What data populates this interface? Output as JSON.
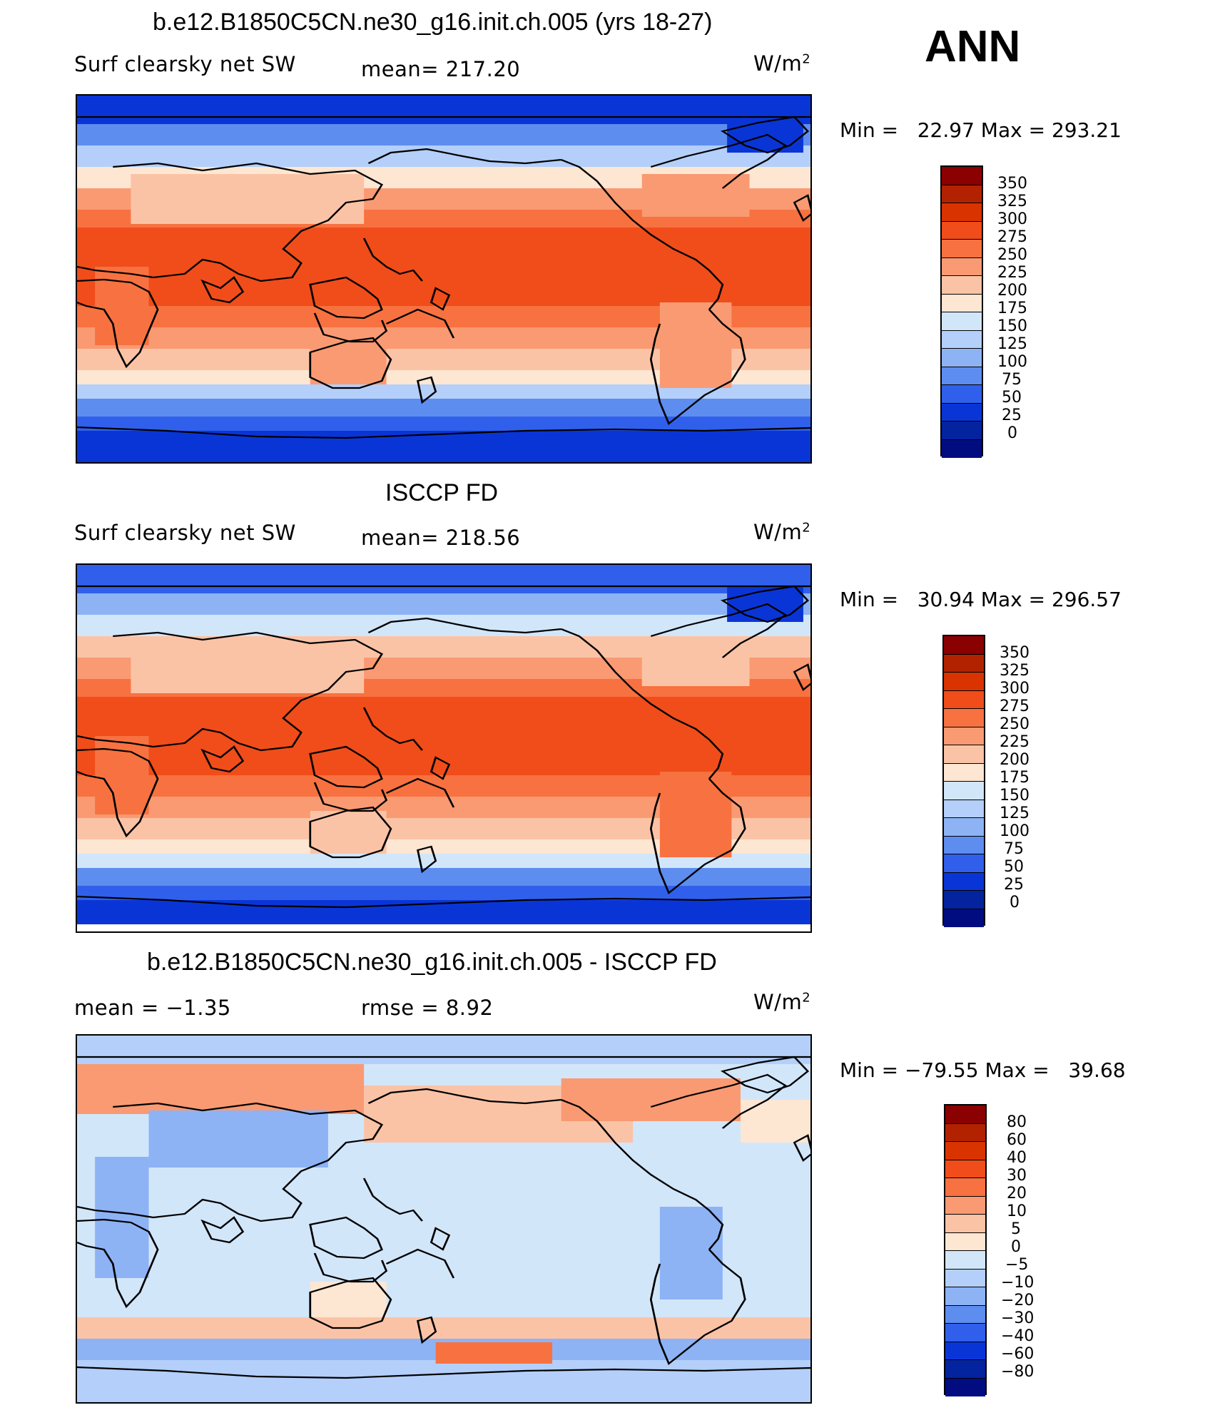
{
  "season": "ANN",
  "units_base": "W/m",
  "units_exp": "2",
  "panels": [
    {
      "title": "b.e12.B1850C5CN.ne30_g16.init.ch.005 (yrs 18-27)",
      "left_label": "Surf clearsky net SW",
      "center_label": "mean= 217.20",
      "minmax": "Min =   22.97 Max = 293.21",
      "colorbar_labels": [
        "350",
        "325",
        "300",
        "275",
        "250",
        "225",
        "200",
        "175",
        "150",
        "125",
        "100",
        "75",
        "50",
        "25",
        "0"
      ],
      "colorbar_colors": [
        "#8b0000",
        "#b22200",
        "#d93300",
        "#f04d1a",
        "#f77240",
        "#f99a73",
        "#fbc3a6",
        "#fde6d2",
        "#d2e6fa",
        "#b4cff9",
        "#8db3f5",
        "#5e8df0",
        "#3060eb",
        "#0a35d6",
        "#04239e",
        "#000c80"
      ]
    },
    {
      "title": "ISCCP FD",
      "left_label": "Surf clearsky net SW",
      "center_label": "mean= 218.56",
      "minmax": "Min =   30.94 Max = 296.57",
      "colorbar_labels": [
        "350",
        "325",
        "300",
        "275",
        "250",
        "225",
        "200",
        "175",
        "150",
        "125",
        "100",
        "75",
        "50",
        "25",
        "0"
      ],
      "colorbar_colors": [
        "#8b0000",
        "#b22200",
        "#d93300",
        "#f04d1a",
        "#f77240",
        "#f99a73",
        "#fbc3a6",
        "#fde6d2",
        "#d2e6fa",
        "#b4cff9",
        "#8db3f5",
        "#5e8df0",
        "#3060eb",
        "#0a35d6",
        "#04239e",
        "#000c80"
      ]
    },
    {
      "title": "b.e12.B1850C5CN.ne30_g16.init.ch.005 - ISCCP FD",
      "left_label": "mean =    −1.35",
      "center_label": "rmse =     8.92",
      "minmax": "Min = −79.55 Max =   39.68",
      "colorbar_labels": [
        "80",
        "60",
        "40",
        "30",
        "20",
        "10",
        "5",
        "0",
        "−5",
        "−10",
        "−20",
        "−30",
        "−40",
        "−60",
        "−80"
      ],
      "colorbar_colors": [
        "#8b0000",
        "#b22200",
        "#d93300",
        "#f04d1a",
        "#f77240",
        "#f99a73",
        "#fbc3a6",
        "#fde6d2",
        "#d2e6fa",
        "#b4cff9",
        "#8db3f5",
        "#5e8df0",
        "#3060eb",
        "#0a35d6",
        "#04239e",
        "#000c80"
      ]
    }
  ]
}
